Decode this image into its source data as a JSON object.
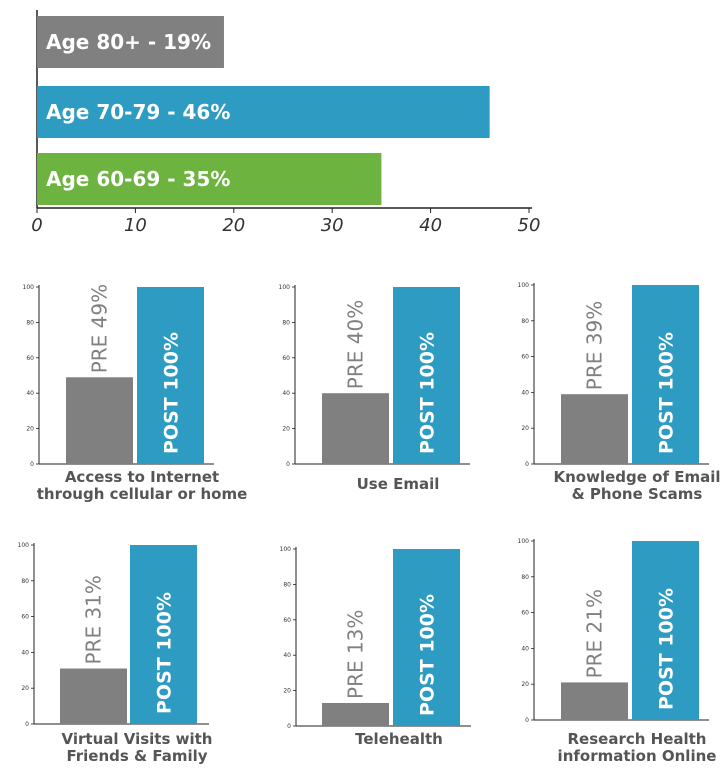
{
  "colors": {
    "gray": "#808080",
    "blue": "#2d9bc2",
    "green": "#6db33f"
  },
  "chart_data": [
    {
      "type": "bar",
      "orientation": "horizontal",
      "categories": [
        "Age 80+ - 19%",
        "Age 70-79 - 46%",
        "Age 60-69 - 35%"
      ],
      "values": [
        19,
        46,
        35
      ],
      "colors": [
        "#808080",
        "#2d9bc2",
        "#6db33f"
      ],
      "xlim": [
        0,
        50
      ],
      "xticks": [
        "0",
        "10",
        "20",
        "30",
        "40",
        "50"
      ]
    },
    {
      "type": "bar",
      "title_lines": [
        "Access to Internet",
        "through cellular or home"
      ],
      "categories": [
        "PRE 49%",
        "POST 100%"
      ],
      "values": [
        49,
        100
      ],
      "ylim": [
        0,
        100
      ],
      "yticks": [
        "0",
        "20",
        "40",
        "60",
        "80",
        "100"
      ]
    },
    {
      "type": "bar",
      "title_lines": [
        "Use Email"
      ],
      "categories": [
        "PRE 40%",
        "POST 100%"
      ],
      "values": [
        40,
        100
      ],
      "ylim": [
        0,
        100
      ],
      "yticks": [
        "0",
        "20",
        "40",
        "60",
        "80",
        "100"
      ]
    },
    {
      "type": "bar",
      "title_lines": [
        "Knowledge of Email",
        "& Phone Scams"
      ],
      "categories": [
        "PRE 39%",
        "POST 100%"
      ],
      "values": [
        39,
        100
      ],
      "ylim": [
        0,
        100
      ],
      "yticks": [
        "0",
        "20",
        "40",
        "60",
        "80",
        "100"
      ]
    },
    {
      "type": "bar",
      "title_lines": [
        "Virtual Visits with",
        "Friends & Family"
      ],
      "categories": [
        "PRE 31%",
        "POST 100%"
      ],
      "values": [
        31,
        100
      ],
      "ylim": [
        0,
        100
      ],
      "yticks": [
        "0",
        "20",
        "40",
        "60",
        "80",
        "100"
      ]
    },
    {
      "type": "bar",
      "title_lines": [
        "Telehealth"
      ],
      "categories": [
        "PRE 13%",
        "POST 100%"
      ],
      "values": [
        13,
        100
      ],
      "ylim": [
        0,
        100
      ],
      "yticks": [
        "0",
        "20",
        "40",
        "60",
        "80",
        "100"
      ]
    },
    {
      "type": "bar",
      "title_lines": [
        "Research Health",
        "information Online"
      ],
      "categories": [
        "PRE 21%",
        "POST 100%"
      ],
      "values": [
        21,
        100
      ],
      "ylim": [
        0,
        100
      ],
      "yticks": [
        "0",
        "20",
        "40",
        "60",
        "80",
        "100"
      ]
    }
  ]
}
